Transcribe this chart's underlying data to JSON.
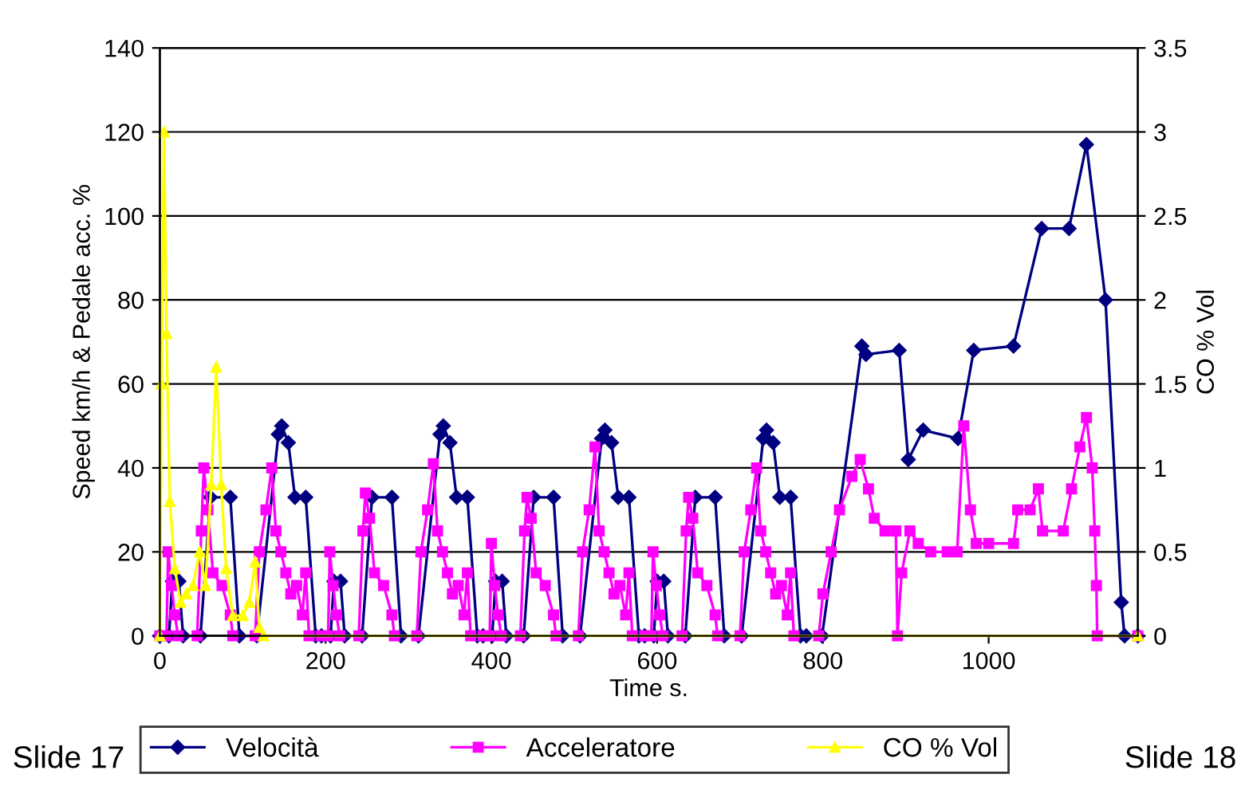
{
  "chart_data": {
    "type": "line",
    "xlabel": "Time s.",
    "ylabel": "Speed km/h & Pedale acc. %",
    "y2label": "CO % Vol",
    "xlim": [
      0,
      1180
    ],
    "xticks": [
      0,
      200,
      400,
      600,
      800,
      1000
    ],
    "ylim": [
      0,
      140
    ],
    "yticks": [
      0,
      20,
      40,
      60,
      80,
      100,
      120,
      140
    ],
    "y2lim": [
      0,
      3.5
    ],
    "y2ticks": [
      0,
      0.5,
      1,
      1.5,
      2,
      2.5,
      3,
      3.5
    ],
    "grid": "y",
    "legend": "bottom",
    "annotations": [
      "Slide 17",
      "Slide 18"
    ],
    "series": [
      {
        "name": "Velocità",
        "color": "#000080",
        "marker": "diamond",
        "x": [
          0,
          11,
          15,
          23,
          28,
          49,
          61,
          85,
          96,
          117,
          143,
          147,
          155,
          163,
          176,
          188,
          195,
          206,
          210,
          218,
          223,
          244,
          256,
          280,
          291,
          312,
          338,
          342,
          350,
          358,
          371,
          383,
          390,
          401,
          405,
          413,
          418,
          439,
          451,
          475,
          486,
          507,
          533,
          537,
          545,
          553,
          566,
          578,
          585,
          596,
          600,
          608,
          613,
          634,
          646,
          670,
          681,
          702,
          728,
          732,
          740,
          748,
          761,
          773,
          780,
          799,
          847,
          852,
          892,
          903,
          921,
          963,
          982,
          1030,
          1064,
          1097,
          1118,
          1141,
          1160,
          1164,
          1180
        ],
        "values": [
          0,
          0,
          13,
          13,
          0,
          0,
          33,
          33,
          0,
          0,
          48,
          50,
          46,
          33,
          33,
          0,
          0,
          0,
          13,
          13,
          0,
          0,
          33,
          33,
          0,
          0,
          48,
          50,
          46,
          33,
          33,
          0,
          0,
          0,
          13,
          13,
          0,
          0,
          33,
          33,
          0,
          0,
          47,
          49,
          46,
          33,
          33,
          0,
          0,
          0,
          13,
          13,
          0,
          0,
          33,
          33,
          0,
          0,
          47,
          49,
          46,
          33,
          33,
          0,
          0,
          0,
          69,
          67,
          68,
          42,
          49,
          47,
          68,
          69,
          97,
          97,
          117,
          80,
          8,
          0,
          0
        ]
      },
      {
        "name": "Acceleratore",
        "color": "#ff00ff",
        "marker": "square",
        "x": [
          0,
          8,
          10,
          14,
          18,
          22,
          45,
          50,
          53,
          58,
          64,
          75,
          85,
          88,
          115,
          120,
          128,
          135,
          140,
          146,
          152,
          158,
          165,
          172,
          176,
          180,
          195,
          203,
          205,
          209,
          213,
          217,
          240,
          245,
          248,
          253,
          259,
          270,
          280,
          283,
          310,
          315,
          323,
          330,
          335,
          341,
          347,
          353,
          360,
          367,
          371,
          375,
          390,
          398,
          400,
          404,
          408,
          412,
          435,
          440,
          443,
          448,
          454,
          465,
          475,
          478,
          505,
          510,
          518,
          525,
          530,
          536,
          542,
          548,
          555,
          562,
          566,
          570,
          585,
          593,
          595,
          599,
          603,
          607,
          630,
          635,
          638,
          643,
          649,
          660,
          670,
          673,
          700,
          705,
          713,
          720,
          725,
          731,
          737,
          743,
          750,
          757,
          761,
          765,
          795,
          800,
          810,
          820,
          835,
          845,
          855,
          862,
          875,
          888,
          890,
          895,
          905,
          915,
          930,
          950,
          962,
          970,
          978,
          985,
          1000,
          1030,
          1035,
          1050,
          1060,
          1065,
          1090,
          1100,
          1110,
          1118,
          1125,
          1128,
          1130,
          1131,
          1180
        ],
        "values": [
          0,
          0,
          20,
          12,
          5,
          0,
          0,
          25,
          40,
          30,
          15,
          12,
          5,
          0,
          0,
          20,
          30,
          40,
          25,
          20,
          15,
          10,
          12,
          5,
          15,
          0,
          0,
          0,
          20,
          12,
          5,
          0,
          0,
          25,
          34,
          28,
          15,
          12,
          5,
          0,
          0,
          20,
          30,
          41,
          25,
          20,
          15,
          10,
          12,
          5,
          15,
          0,
          0,
          0,
          22,
          12,
          5,
          0,
          0,
          25,
          33,
          28,
          15,
          12,
          5,
          0,
          0,
          20,
          30,
          45,
          25,
          20,
          15,
          10,
          12,
          5,
          15,
          0,
          0,
          0,
          20,
          12,
          5,
          0,
          0,
          25,
          33,
          28,
          15,
          12,
          5,
          0,
          0,
          20,
          30,
          40,
          25,
          20,
          15,
          10,
          12,
          5,
          15,
          0,
          0,
          10,
          20,
          30,
          38,
          42,
          35,
          28,
          25,
          25,
          0,
          15,
          25,
          22,
          20,
          20,
          20,
          50,
          30,
          22,
          22,
          22,
          30,
          30,
          35,
          25,
          25,
          35,
          45,
          52,
          40,
          25,
          12,
          0,
          0
        ]
      },
      {
        "name": "CO % Vol",
        "color": "#ffff00",
        "marker": "triangle",
        "axis": "y2",
        "x": [
          0,
          2,
          5,
          8,
          12,
          18,
          25,
          32,
          40,
          48,
          55,
          62,
          68,
          74,
          80,
          88,
          100,
          108,
          115,
          120,
          125,
          1180
        ],
        "values": [
          0,
          1.5,
          3,
          1.8,
          0.8,
          0.4,
          0.2,
          0.25,
          0.3,
          0.5,
          0.3,
          0.9,
          1.6,
          0.9,
          0.4,
          0.12,
          0.12,
          0.2,
          0.44,
          0.05,
          0,
          0
        ]
      }
    ]
  }
}
